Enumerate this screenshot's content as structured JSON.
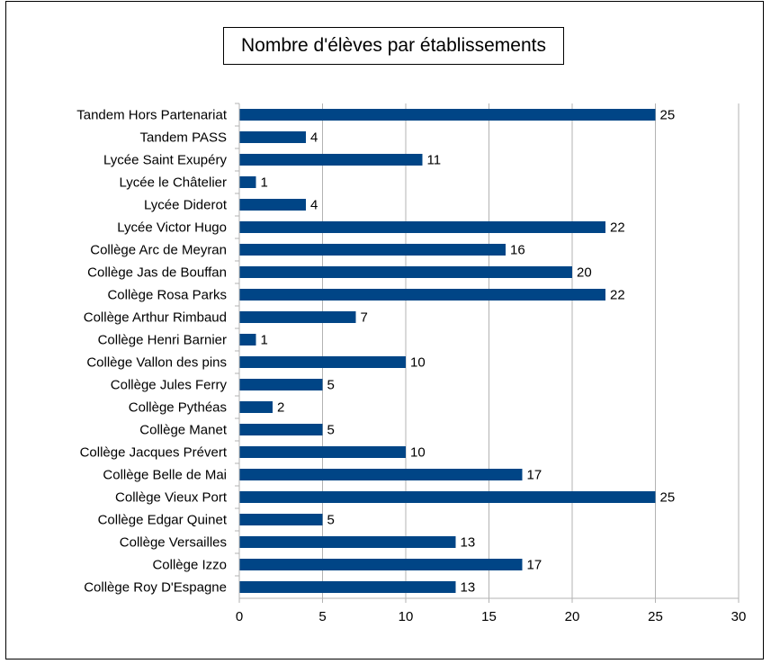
{
  "chart_data": {
    "type": "bar",
    "orientation": "horizontal",
    "title": "Nombre d'élèves par établissements",
    "xlabel": "",
    "ylabel": "",
    "xlim": [
      0,
      30
    ],
    "xticks": [
      0,
      5,
      10,
      15,
      20,
      25,
      30
    ],
    "grid": true,
    "legend": "none",
    "bar_color": "#004586",
    "categories": [
      "Tandem Hors Partenariat",
      "Tandem PASS",
      "Lycée Saint Exupéry",
      "Lycée le Châtelier",
      "Lycée Diderot",
      "Lycée Victor Hugo",
      "Collège Arc de Meyran",
      "Collège Jas de Bouffan",
      "Collège Rosa Parks",
      "Collège Arthur Rimbaud",
      "Collège Henri Barnier",
      "Collège Vallon des pins",
      "Collège Jules Ferry",
      "Collège Pythéas",
      "Collège Manet",
      "Collège Jacques Prévert",
      "Collège Belle de Mai",
      "Collège Vieux Port",
      "Collège Edgar Quinet",
      "Collège Versailles",
      "Collège Izzo",
      "Collège Roy D'Espagne"
    ],
    "values": [
      25,
      4,
      11,
      1,
      4,
      22,
      16,
      20,
      22,
      7,
      1,
      10,
      5,
      2,
      5,
      10,
      17,
      25,
      5,
      13,
      17,
      13
    ]
  }
}
